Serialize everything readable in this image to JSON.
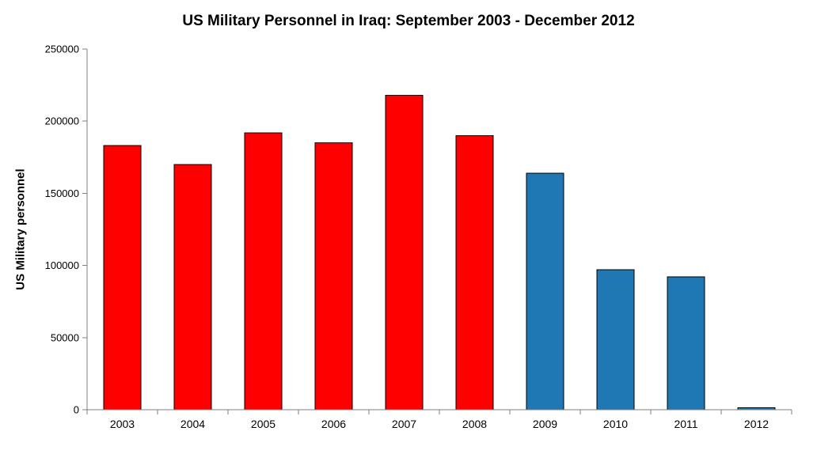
{
  "chart_data": {
    "type": "bar",
    "title": "US Military Personnel in Iraq: September 2003 - December 2012",
    "ylabel": "US Military personnel",
    "xlabel": "",
    "categories": [
      "2003",
      "2004",
      "2005",
      "2006",
      "2007",
      "2008",
      "2009",
      "2010",
      "2011",
      "2012"
    ],
    "values": [
      183000,
      170000,
      192000,
      185000,
      218000,
      190000,
      164000,
      97000,
      92000,
      1500
    ],
    "bar_colors": [
      "#FF0000",
      "#FF0000",
      "#FF0000",
      "#FF0000",
      "#FF0000",
      "#FF0000",
      "#1F77B4",
      "#1F77B4",
      "#1F77B4",
      "#1F77B4"
    ],
    "bar_outline_color": "#000000",
    "axis_color": "#808080",
    "ylim": [
      0,
      250000
    ],
    "yticks": [
      0,
      50000,
      100000,
      150000,
      200000,
      250000
    ],
    "grid": "off",
    "legend": "none"
  }
}
